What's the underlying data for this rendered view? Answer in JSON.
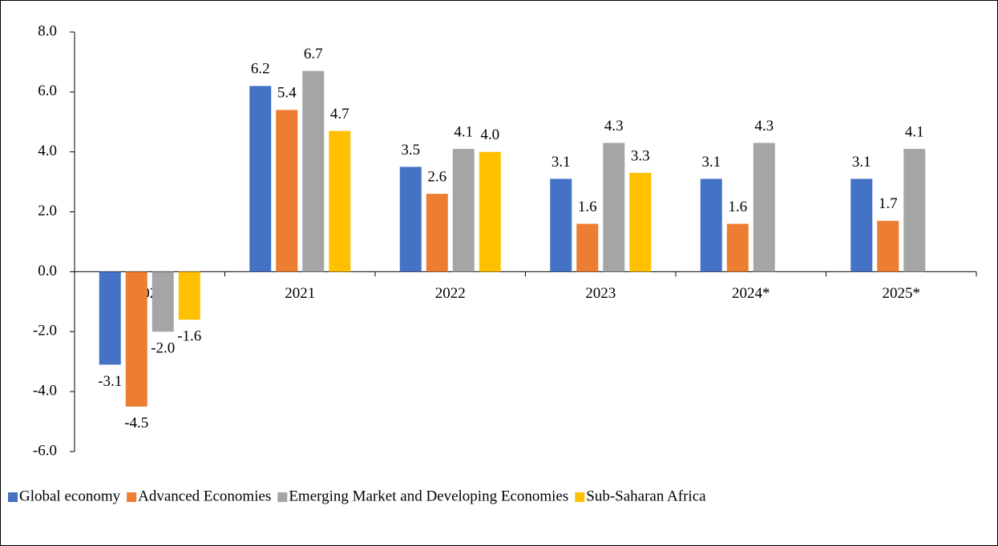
{
  "chart_data": {
    "type": "bar",
    "categories": [
      "2020",
      "2021",
      "2022",
      "2023",
      "2024*",
      "2025*"
    ],
    "series": [
      {
        "name": "Global economy",
        "color": "#4472c4",
        "values": [
          -3.1,
          6.2,
          3.5,
          3.1,
          3.1,
          3.1
        ],
        "value_labels": [
          "-3.1",
          "6.2",
          "3.5",
          "3.1",
          "3.1",
          "3.1"
        ]
      },
      {
        "name": "Advanced Economies",
        "color": "#ed7d31",
        "values": [
          -4.5,
          5.4,
          2.6,
          1.6,
          1.6,
          1.7
        ],
        "value_labels": [
          "-4.5",
          "5.4",
          "2.6",
          "1.6",
          "1.6",
          "1.7"
        ]
      },
      {
        "name": "Emerging Market and Developing Economies",
        "color": "#a5a5a5",
        "values": [
          -2.0,
          6.7,
          4.1,
          4.3,
          4.3,
          4.1
        ],
        "value_labels": [
          "-2.0",
          "6.7",
          "4.1",
          "4.3",
          "4.3",
          "4.1"
        ]
      },
      {
        "name": "Sub-Saharan Africa",
        "color": "#ffc000",
        "values": [
          -1.6,
          4.7,
          4.0,
          3.3,
          null,
          null
        ],
        "value_labels": [
          "-1.6",
          "4.7",
          "4.0",
          "3.3",
          null,
          null
        ]
      }
    ],
    "ylim": [
      -6,
      8
    ],
    "yticks": [
      {
        "value": -6,
        "label": "-6.0"
      },
      {
        "value": -4,
        "label": "-4.0"
      },
      {
        "value": -2,
        "label": "-2.0"
      },
      {
        "value": 0,
        "label": "0.0"
      },
      {
        "value": 2,
        "label": "2.0"
      },
      {
        "value": 4,
        "label": "4.0"
      },
      {
        "value": 6,
        "label": "6.0"
      },
      {
        "value": 8,
        "label": "8.0"
      }
    ],
    "grid": false,
    "legend": "bottom"
  }
}
